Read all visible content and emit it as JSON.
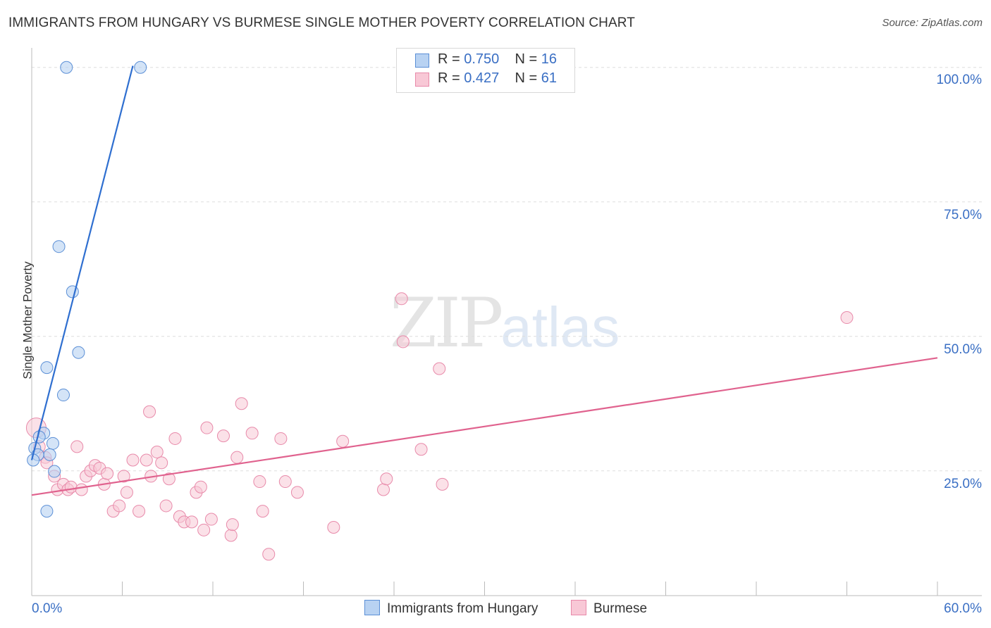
{
  "title": "IMMIGRANTS FROM HUNGARY VS BURMESE SINGLE MOTHER POVERTY CORRELATION CHART",
  "source": "Source: ZipAtlas.com",
  "watermark": {
    "zip": "ZIP",
    "atlas": "atlas"
  },
  "legend": {
    "series1": {
      "r_label": "R =",
      "r_value": "0.750",
      "n_label": "N =",
      "n_value": "16"
    },
    "series2": {
      "r_label": "R =",
      "r_value": "0.427",
      "n_label": "N =",
      "n_value": "61"
    }
  },
  "bottom_legend": {
    "series1": "Immigrants from Hungary",
    "series2": "Burmese"
  },
  "colors": {
    "series1_fill": "#b8d2f2",
    "series1_stroke": "#5b8fd6",
    "series1_line": "#2f6fd0",
    "series2_fill": "#f8c8d6",
    "series2_stroke": "#e88aaa",
    "series2_line": "#e0628e",
    "axis_label": "#3a6fc4",
    "grid": "#dddddd"
  },
  "chart_data": {
    "type": "scatter",
    "title": "IMMIGRANTS FROM HUNGARY VS BURMESE SINGLE MOTHER POVERTY CORRELATION CHART",
    "xlabel": "",
    "ylabel": "Single Mother Poverty",
    "xlim": [
      0,
      60
    ],
    "ylim": [
      2,
      102
    ],
    "x_tick_labels": [
      {
        "value": 0,
        "label": "0.0%"
      },
      {
        "value": 60,
        "label": "60.0%"
      }
    ],
    "y_tick_labels": [
      {
        "value": 25,
        "label": "25.0%"
      },
      {
        "value": 50,
        "label": "50.0%"
      },
      {
        "value": 75,
        "label": "75.0%"
      },
      {
        "value": 100,
        "label": "100.0%"
      }
    ],
    "x_minor_ticks": [
      6,
      12,
      18,
      24,
      30,
      36,
      42,
      48,
      54,
      60
    ],
    "grid": true,
    "series": [
      {
        "name": "Immigrants from Hungary",
        "r": 0.75,
        "n": 16,
        "trendline": {
          "x": [
            0,
            6.7
          ],
          "y": [
            27.0,
            100.3
          ]
        },
        "points": [
          {
            "x": 2.3,
            "y": 100.0
          },
          {
            "x": 7.2,
            "y": 100.0
          },
          {
            "x": 1.8,
            "y": 66.7
          },
          {
            "x": 2.7,
            "y": 58.3
          },
          {
            "x": 3.1,
            "y": 47.0
          },
          {
            "x": 1.0,
            "y": 44.2
          },
          {
            "x": 2.1,
            "y": 39.1
          },
          {
            "x": 0.8,
            "y": 32.0
          },
          {
            "x": 1.4,
            "y": 30.1
          },
          {
            "x": 0.5,
            "y": 31.3
          },
          {
            "x": 0.2,
            "y": 29.2
          },
          {
            "x": 0.4,
            "y": 28.0
          },
          {
            "x": 1.2,
            "y": 28.0
          },
          {
            "x": 0.1,
            "y": 27.0
          },
          {
            "x": 1.5,
            "y": 24.9
          },
          {
            "x": 1.0,
            "y": 17.5
          }
        ]
      },
      {
        "name": "Burmese",
        "r": 0.427,
        "n": 61,
        "trendline": {
          "x": [
            0,
            60
          ],
          "y": [
            20.5,
            46.0
          ]
        },
        "points": [
          {
            "x": 0.3,
            "y": 33.0
          },
          {
            "x": 0.5,
            "y": 29.5
          },
          {
            "x": 0.9,
            "y": 27.5
          },
          {
            "x": 1.5,
            "y": 24.0
          },
          {
            "x": 1.7,
            "y": 21.5
          },
          {
            "x": 2.1,
            "y": 22.5
          },
          {
            "x": 2.4,
            "y": 21.5
          },
          {
            "x": 2.6,
            "y": 22.0
          },
          {
            "x": 3.0,
            "y": 29.5
          },
          {
            "x": 3.3,
            "y": 21.5
          },
          {
            "x": 3.6,
            "y": 24.0
          },
          {
            "x": 3.9,
            "y": 25.0
          },
          {
            "x": 4.2,
            "y": 26.0
          },
          {
            "x": 4.5,
            "y": 25.5
          },
          {
            "x": 4.8,
            "y": 22.5
          },
          {
            "x": 5.0,
            "y": 24.5
          },
          {
            "x": 5.4,
            "y": 17.5
          },
          {
            "x": 5.8,
            "y": 18.5
          },
          {
            "x": 6.1,
            "y": 24.0
          },
          {
            "x": 6.3,
            "y": 21.0
          },
          {
            "x": 6.7,
            "y": 27.0
          },
          {
            "x": 7.1,
            "y": 17.5
          },
          {
            "x": 7.6,
            "y": 27.0
          },
          {
            "x": 7.8,
            "y": 36.0
          },
          {
            "x": 7.9,
            "y": 24.0
          },
          {
            "x": 8.3,
            "y": 28.5
          },
          {
            "x": 8.6,
            "y": 26.5
          },
          {
            "x": 8.9,
            "y": 18.5
          },
          {
            "x": 9.1,
            "y": 23.5
          },
          {
            "x": 9.5,
            "y": 31.0
          },
          {
            "x": 9.8,
            "y": 16.5
          },
          {
            "x": 10.1,
            "y": 15.5
          },
          {
            "x": 10.6,
            "y": 15.5
          },
          {
            "x": 10.9,
            "y": 21.0
          },
          {
            "x": 11.2,
            "y": 22.0
          },
          {
            "x": 11.4,
            "y": 14.0
          },
          {
            "x": 11.6,
            "y": 33.0
          },
          {
            "x": 11.9,
            "y": 16.0
          },
          {
            "x": 12.7,
            "y": 31.5
          },
          {
            "x": 13.2,
            "y": 13.0
          },
          {
            "x": 13.3,
            "y": 15.0
          },
          {
            "x": 13.6,
            "y": 27.5
          },
          {
            "x": 13.9,
            "y": 37.5
          },
          {
            "x": 14.6,
            "y": 32.0
          },
          {
            "x": 15.1,
            "y": 23.0
          },
          {
            "x": 15.3,
            "y": 17.5
          },
          {
            "x": 15.7,
            "y": 9.5
          },
          {
            "x": 16.5,
            "y": 31.0
          },
          {
            "x": 16.8,
            "y": 23.0
          },
          {
            "x": 17.6,
            "y": 21.0
          },
          {
            "x": 20.0,
            "y": 14.5
          },
          {
            "x": 20.6,
            "y": 30.5
          },
          {
            "x": 23.3,
            "y": 21.5
          },
          {
            "x": 23.5,
            "y": 23.5
          },
          {
            "x": 24.5,
            "y": 57.0
          },
          {
            "x": 24.6,
            "y": 49.0
          },
          {
            "x": 25.8,
            "y": 29.0
          },
          {
            "x": 27.0,
            "y": 44.0
          },
          {
            "x": 27.2,
            "y": 22.5
          },
          {
            "x": 54.0,
            "y": 53.5
          },
          {
            "x": 1.0,
            "y": 26.5
          }
        ]
      }
    ]
  }
}
